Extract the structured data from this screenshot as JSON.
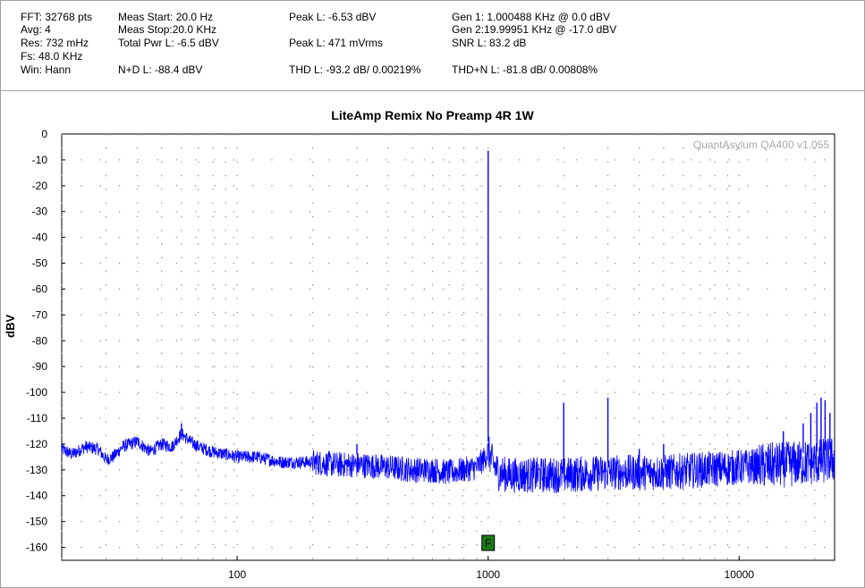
{
  "info": {
    "col1": [
      "FFT: 32768 pts",
      "Avg: 4",
      "Res: 732 mHz",
      "Fs: 48.0 KHz",
      "Win: Hann"
    ],
    "col2": [
      "Meas Start: 20.0 Hz",
      "Meas Stop:20.0 KHz",
      "Total Pwr L: -6.5 dBV",
      "N+D L: -88.4 dBV"
    ],
    "col3": [
      "Peak L: -6.53 dBV",
      "Peak L: 471 mVrms",
      "THD L: -93.2 dB/ 0.00219%"
    ],
    "col4": [
      "Gen 1: 1.000488 KHz @ 0.0  dBV",
      "Gen 2:19.99951 KHz @ -17.0  dBV",
      "SNR L: 83.2 dB",
      "THD+N L: -81.8 dB/ 0.00808%"
    ]
  },
  "watermark": "QuantAsylum QA400 v1.055",
  "marker_label": "F",
  "colors": {
    "trace": "#0000ff",
    "marker": "#1a7a1a",
    "grid": "#909090"
  },
  "chart_data": {
    "type": "line",
    "title": "LiteAmp Remix No Preamp 4R 1W",
    "xlabel": "",
    "ylabel": "dBV",
    "x_scale": "log",
    "xlim": [
      20,
      24000
    ],
    "ylim": [
      -165,
      0
    ],
    "xticks": [
      100,
      1000,
      10000
    ],
    "xtick_labels": [
      "100",
      "1000",
      "10000"
    ],
    "yticks": [
      0,
      -10,
      -20,
      -30,
      -40,
      -50,
      -60,
      -70,
      -80,
      -90,
      -100,
      -110,
      -120,
      -130,
      -140,
      -150,
      -160
    ],
    "grid": true,
    "marker": {
      "label": "F",
      "x": 1000
    },
    "series": [
      {
        "name": "",
        "noise_floor": [
          [
            20,
            -122
          ],
          [
            22,
            -124
          ],
          [
            25,
            -121
          ],
          [
            28,
            -122
          ],
          [
            30,
            -126
          ],
          [
            32,
            -125
          ],
          [
            35,
            -121
          ],
          [
            40,
            -119
          ],
          [
            45,
            -123
          ],
          [
            50,
            -120
          ],
          [
            55,
            -121
          ],
          [
            60,
            -116
          ],
          [
            65,
            -119
          ],
          [
            70,
            -121
          ],
          [
            80,
            -123
          ],
          [
            90,
            -124
          ],
          [
            100,
            -125
          ],
          [
            120,
            -125
          ],
          [
            150,
            -127
          ],
          [
            200,
            -127
          ],
          [
            250,
            -128
          ],
          [
            300,
            -128
          ],
          [
            400,
            -129
          ],
          [
            500,
            -130
          ],
          [
            600,
            -130
          ],
          [
            700,
            -131
          ],
          [
            800,
            -130
          ],
          [
            900,
            -129
          ],
          [
            960,
            -126
          ],
          [
            1000,
            -123
          ],
          [
            1050,
            -128
          ],
          [
            1100,
            -131
          ],
          [
            1200,
            -132
          ],
          [
            1500,
            -132
          ],
          [
            2000,
            -132
          ],
          [
            3000,
            -131
          ],
          [
            5000,
            -131
          ],
          [
            7000,
            -130
          ],
          [
            10000,
            -129
          ],
          [
            15000,
            -128
          ],
          [
            20000,
            -127
          ],
          [
            24000,
            -126
          ]
        ],
        "peaks": [
          {
            "x": 1000,
            "y": -6.5
          },
          {
            "x": 2000,
            "y": -104
          },
          {
            "x": 3000,
            "y": -102
          },
          {
            "x": 4000,
            "y": -122
          },
          {
            "x": 5000,
            "y": -120
          },
          {
            "x": 300,
            "y": -120
          },
          {
            "x": 60,
            "y": -115
          },
          {
            "x": 15000,
            "y": -115
          },
          {
            "x": 18000,
            "y": -112
          },
          {
            "x": 19300,
            "y": -108
          },
          {
            "x": 20400,
            "y": -104
          },
          {
            "x": 21200,
            "y": -102
          },
          {
            "x": 22000,
            "y": -103
          },
          {
            "x": 23000,
            "y": -108
          }
        ]
      }
    ]
  }
}
